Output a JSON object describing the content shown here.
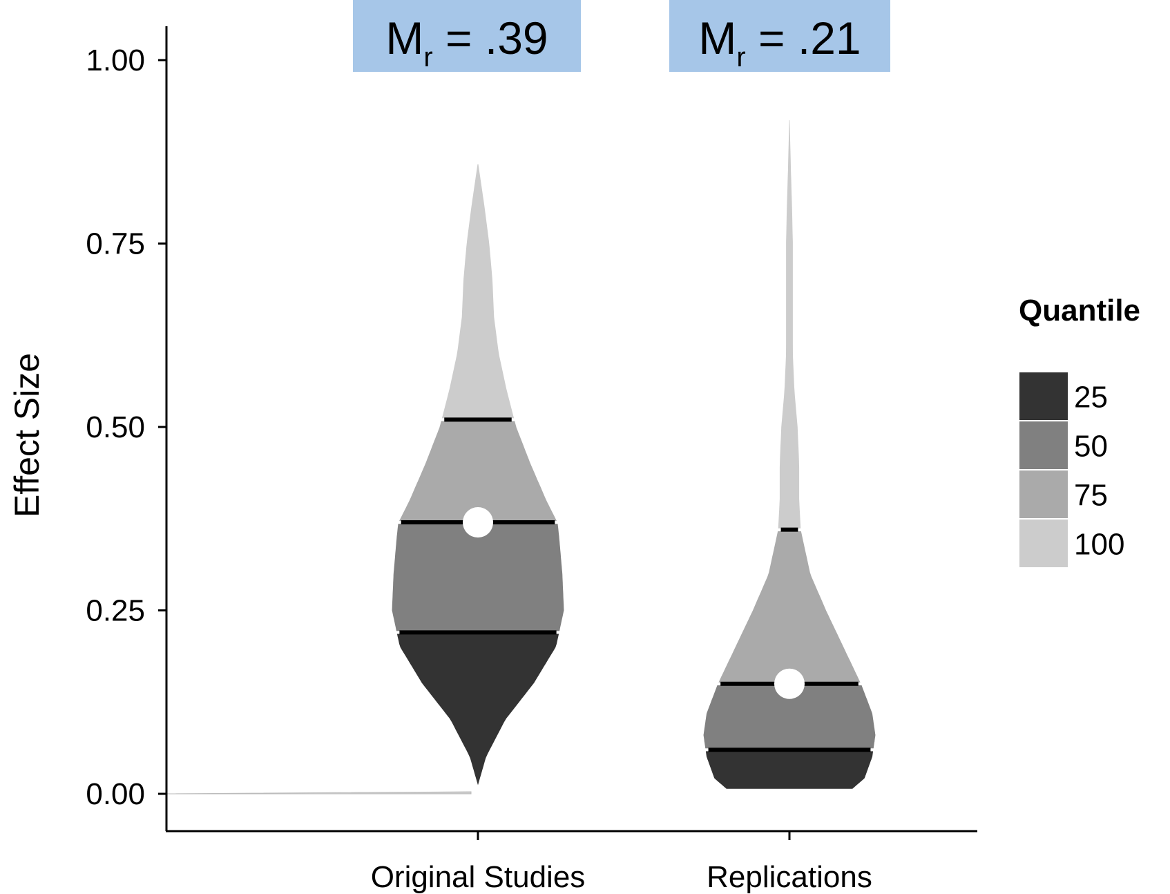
{
  "chart_data": {
    "type": "violin",
    "ylabel": "Effect Size",
    "xlabel": "",
    "ylim": [
      -0.1,
      1.12
    ],
    "yticks": [
      "0.00",
      "0.25",
      "0.50",
      "0.75",
      "1.00"
    ],
    "categories": [
      "Original Studies",
      "Replications"
    ],
    "legend": {
      "title": "Quantile",
      "placement": "right",
      "items": [
        {
          "label": "25",
          "color": "#333333"
        },
        {
          "label": "50",
          "color": "#808080"
        },
        {
          "label": "75",
          "color": "#aaaaaa"
        },
        {
          "label": "100",
          "color": "#cccccc"
        }
      ]
    },
    "groups": [
      {
        "name": "Original Studies",
        "mean_label": {
          "prefix": "M",
          "sub": "r",
          "text": " = .39"
        },
        "mean": 0.37,
        "min": 0.005,
        "max": 0.86,
        "quartiles": [
          0.22,
          0.37,
          0.51
        ],
        "density": [
          [
            0.005,
            0.0
          ],
          [
            0.05,
            0.06
          ],
          [
            0.1,
            0.18
          ],
          [
            0.15,
            0.36
          ],
          [
            0.2,
            0.5
          ],
          [
            0.22,
            0.52
          ],
          [
            0.25,
            0.55
          ],
          [
            0.3,
            0.54
          ],
          [
            0.35,
            0.52
          ],
          [
            0.37,
            0.51
          ],
          [
            0.4,
            0.44
          ],
          [
            0.45,
            0.34
          ],
          [
            0.5,
            0.25
          ],
          [
            0.55,
            0.19
          ],
          [
            0.6,
            0.14
          ],
          [
            0.65,
            0.11
          ],
          [
            0.7,
            0.1
          ],
          [
            0.75,
            0.08
          ],
          [
            0.8,
            0.05
          ],
          [
            0.86,
            0.01
          ]
        ]
      },
      {
        "name": "Replications",
        "mean_label": {
          "prefix": "M",
          "sub": "r",
          "text": " = .21"
        },
        "mean": 0.15,
        "min": 0.005,
        "max": 0.92,
        "quartiles": [
          0.06,
          0.15,
          0.36
        ],
        "density": [
          [
            0.005,
            0.4
          ],
          [
            0.02,
            0.48
          ],
          [
            0.05,
            0.53
          ],
          [
            0.08,
            0.55
          ],
          [
            0.11,
            0.53
          ],
          [
            0.15,
            0.46
          ],
          [
            0.2,
            0.35
          ],
          [
            0.25,
            0.24
          ],
          [
            0.3,
            0.14
          ],
          [
            0.36,
            0.08
          ],
          [
            0.4,
            0.07
          ],
          [
            0.45,
            0.07
          ],
          [
            0.5,
            0.06
          ],
          [
            0.55,
            0.04
          ],
          [
            0.6,
            0.03
          ],
          [
            0.65,
            0.03
          ],
          [
            0.7,
            0.03
          ],
          [
            0.75,
            0.03
          ],
          [
            0.8,
            0.025
          ],
          [
            0.85,
            0.018
          ],
          [
            0.92,
            0.01
          ]
        ]
      }
    ]
  }
}
